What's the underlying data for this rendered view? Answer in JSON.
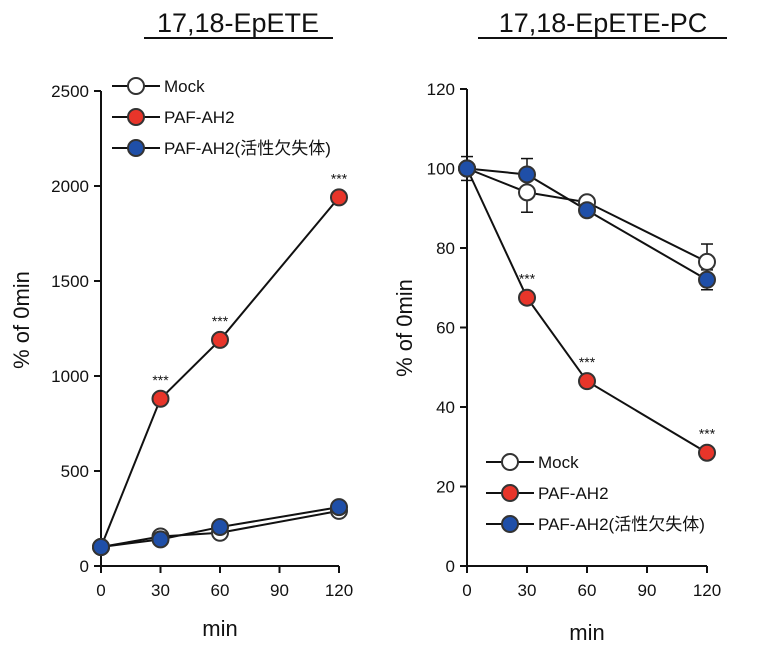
{
  "chart_data": [
    {
      "type": "line",
      "title": "17,18-EpETE",
      "xlabel": "min",
      "ylabel": "% of 0min",
      "x": [
        0,
        30,
        60,
        120
      ],
      "xticks": [
        "0",
        "30",
        "60",
        "90",
        "120"
      ],
      "xlim": [
        0,
        120
      ],
      "ylim": [
        0,
        2500
      ],
      "yticks": [
        "0",
        "500",
        "1000",
        "1500",
        "2000",
        "2500"
      ],
      "legend_position": "top-left",
      "series": [
        {
          "name": "Mock",
          "color": "#ffffff",
          "values": [
            100,
            155,
            175,
            290
          ],
          "errors": [
            0,
            0,
            0,
            0
          ]
        },
        {
          "name": "PAF-AH2",
          "color": "#e8352a",
          "values": [
            100,
            880,
            1190,
            1940
          ],
          "errors": [
            0,
            0,
            0,
            0
          ],
          "significance": [
            "",
            "***",
            "***",
            "***"
          ]
        },
        {
          "name": "PAF-AH2(活性欠失体)",
          "color": "#1f4fa8",
          "values": [
            100,
            140,
            205,
            310
          ],
          "errors": [
            0,
            0,
            0,
            0
          ]
        }
      ]
    },
    {
      "type": "line",
      "title": "17,18-EpETE-PC",
      "xlabel": "min",
      "ylabel": "% of 0min",
      "x": [
        0,
        30,
        60,
        120
      ],
      "xticks": [
        "0",
        "30",
        "60",
        "90",
        "120"
      ],
      "xlim": [
        0,
        120
      ],
      "ylim": [
        0,
        120
      ],
      "yticks": [
        "0",
        "20",
        "40",
        "60",
        "80",
        "100",
        "120"
      ],
      "legend_position": "bottom-left",
      "series": [
        {
          "name": "Mock",
          "color": "#ffffff",
          "values": [
            100,
            94,
            91.5,
            76.5
          ],
          "errors": [
            3,
            5,
            1,
            4.5
          ]
        },
        {
          "name": "PAF-AH2",
          "color": "#e8352a",
          "values": [
            100,
            67.5,
            46.5,
            28.5
          ],
          "errors": [
            0,
            0,
            0,
            0
          ],
          "significance": [
            "",
            "***",
            "***",
            "***"
          ]
        },
        {
          "name": "PAF-AH2(活性欠失体)",
          "color": "#1f4fa8",
          "values": [
            100,
            98.5,
            89.5,
            72
          ],
          "errors": [
            0,
            4,
            1,
            2.5
          ]
        }
      ]
    }
  ]
}
